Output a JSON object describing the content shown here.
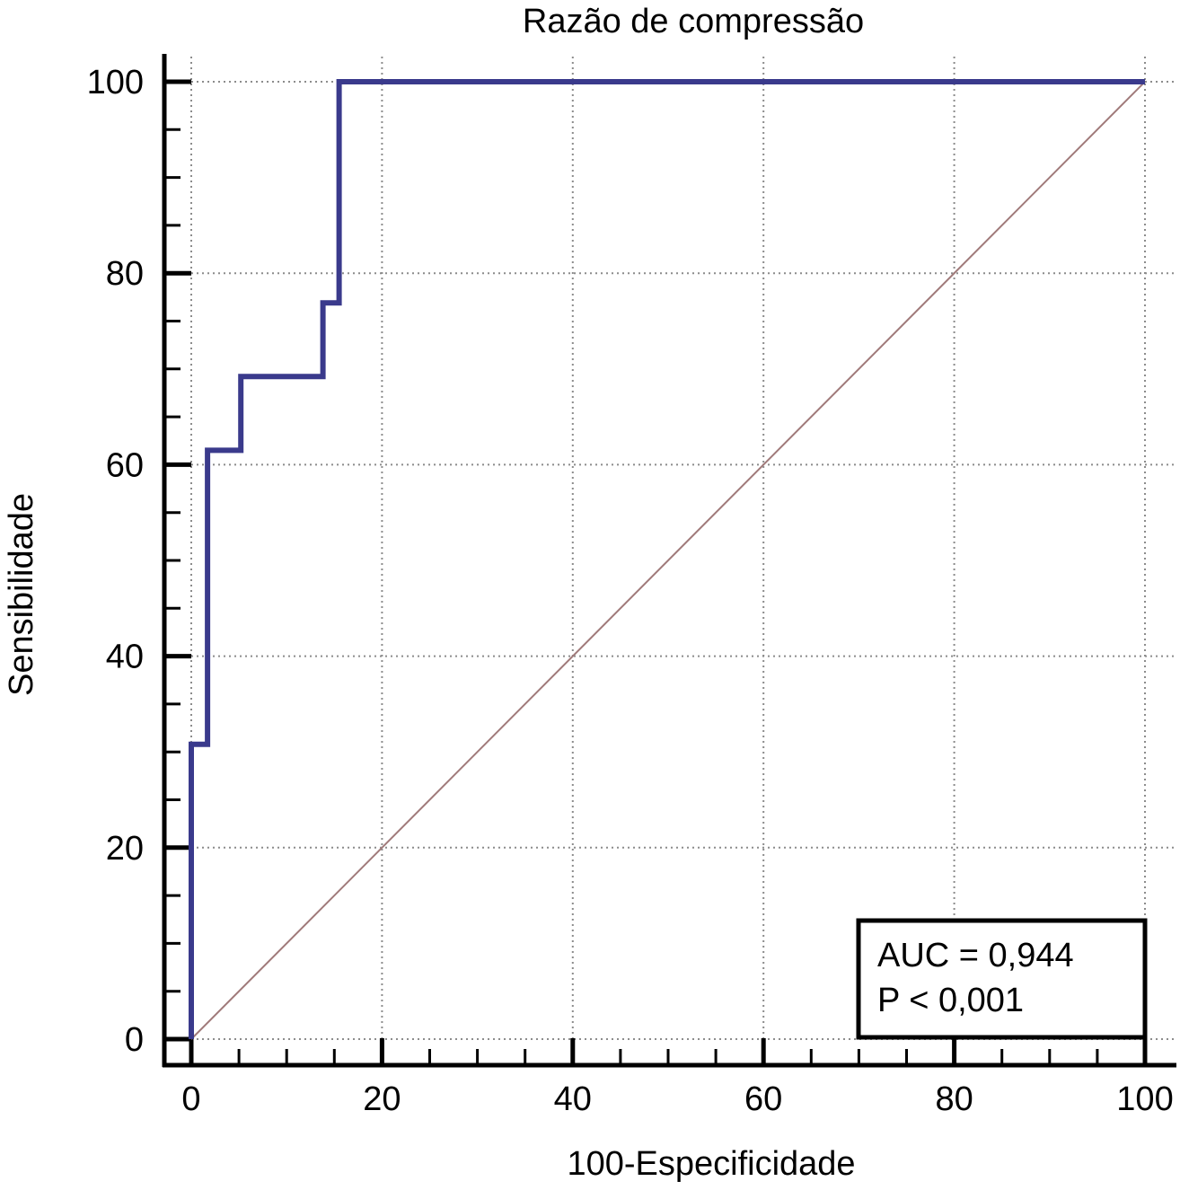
{
  "chart_data": {
    "type": "line",
    "title": "Razão de compressão",
    "xlabel": "100-Especificidade",
    "ylabel": "Sensibilidade",
    "xlim": [
      0,
      100
    ],
    "ylim": [
      0,
      100
    ],
    "xticks": [
      0,
      20,
      40,
      60,
      80,
      100
    ],
    "yticks": [
      0,
      20,
      40,
      60,
      80,
      100
    ],
    "grid": true,
    "series": [
      {
        "color": "#3a3a8c",
        "step": true,
        "x": [
          0,
          0,
          1.7,
          1.7,
          5.2,
          5.2,
          13.8,
          13.8,
          15.5,
          15.5,
          100
        ],
        "y": [
          0,
          30.8,
          30.8,
          61.5,
          61.5,
          69.2,
          69.2,
          76.9,
          76.9,
          100,
          100
        ]
      },
      {
        "color": "#a07a7a",
        "x": [
          0,
          100
        ],
        "y": [
          0,
          100
        ]
      }
    ],
    "annotations": [
      "AUC = 0,944",
      "P < 0,001"
    ]
  }
}
